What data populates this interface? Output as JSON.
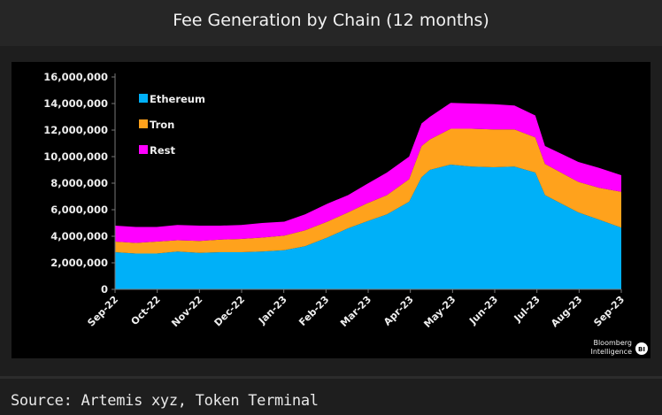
{
  "title": "Fee Generation by Chain (12 months)",
  "source": "Source: Artemis xyz, Token Terminal",
  "branding": "Bloomberg Intelligence",
  "chart_data": {
    "type": "area",
    "stacked": true,
    "title": "Fee Generation by Chain (12 months)",
    "xlabel": "",
    "ylabel": "",
    "ylim": [
      0,
      16000000
    ],
    "yticks": [
      0,
      2000000,
      4000000,
      6000000,
      8000000,
      10000000,
      12000000,
      14000000,
      16000000
    ],
    "ytick_labels": [
      "0",
      "2,000,000",
      "4,000,000",
      "6,000,000",
      "8,000,000",
      "10,000,000",
      "12,000,000",
      "14,000,000",
      "16,000,000"
    ],
    "xtick_labels": [
      "Sep-22",
      "Oct-22",
      "Nov-22",
      "Dec-22",
      "Jan-23",
      "Feb-23",
      "Mar-23",
      "Apr-23",
      "May-23",
      "Jun-23",
      "Jul-23",
      "Aug-23",
      "Sep-23"
    ],
    "legend_position": "top-left",
    "grid": false,
    "x": [
      "2022-09-01",
      "2022-09-16",
      "2022-10-01",
      "2022-10-16",
      "2022-11-01",
      "2022-11-16",
      "2022-12-01",
      "2022-12-16",
      "2023-01-01",
      "2023-01-16",
      "2023-02-01",
      "2023-02-16",
      "2023-03-01",
      "2023-03-16",
      "2023-04-01",
      "2023-04-10",
      "2023-04-16",
      "2023-05-01",
      "2023-05-16",
      "2023-06-01",
      "2023-06-16",
      "2023-07-01",
      "2023-07-08",
      "2023-08-01",
      "2023-08-16",
      "2023-09-01"
    ],
    "series": [
      {
        "name": "Ethereum",
        "color": "#00b0f8",
        "values": [
          2800000,
          2700000,
          2700000,
          2850000,
          2750000,
          2800000,
          2800000,
          2850000,
          2950000,
          3250000,
          3900000,
          4600000,
          5100000,
          5650000,
          6600000,
          8450000,
          9000000,
          9400000,
          9250000,
          9200000,
          9250000,
          8800000,
          7100000,
          5800000,
          5250000,
          4650000
        ]
      },
      {
        "name": "Tron",
        "color": "#ffa21c",
        "values": [
          800000,
          800000,
          900000,
          850000,
          900000,
          950000,
          1000000,
          1050000,
          1100000,
          1200000,
          1200000,
          1200000,
          1350000,
          1450000,
          1700000,
          2350000,
          2300000,
          2700000,
          2850000,
          2850000,
          2800000,
          2650000,
          2350000,
          2300000,
          2400000,
          2700000
        ]
      },
      {
        "name": "Rest",
        "color": "#ff00ff",
        "values": [
          1200000,
          1200000,
          1100000,
          1150000,
          1150000,
          1050000,
          1050000,
          1100000,
          1050000,
          1200000,
          1350000,
          1300000,
          1450000,
          1700000,
          1700000,
          1700000,
          1700000,
          1950000,
          1900000,
          1900000,
          1800000,
          1650000,
          1350000,
          1500000,
          1500000,
          1250000
        ]
      }
    ]
  }
}
